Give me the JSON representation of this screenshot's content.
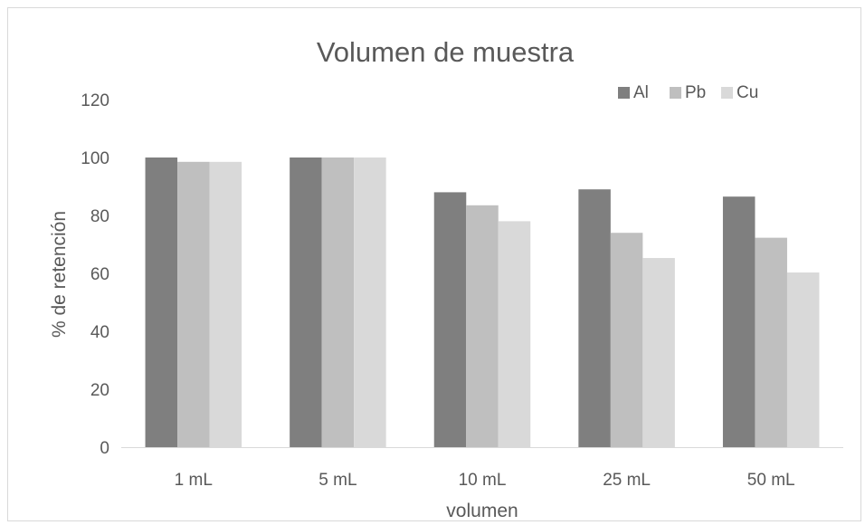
{
  "chart_data": {
    "type": "bar",
    "title": "Volumen de muestra",
    "xlabel": "volumen",
    "ylabel": "% de retención",
    "categories": [
      "1 mL",
      "5 mL",
      "10 mL",
      "25 mL",
      "50 mL"
    ],
    "ylim": [
      0,
      120
    ],
    "yticks": [
      "0",
      "20",
      "40",
      "60",
      "80",
      "100",
      "120"
    ],
    "grid": false,
    "legend_position": "top-right",
    "series": [
      {
        "name": "Al",
        "color": "#7f7f7f",
        "values": [
          100,
          100,
          88,
          89,
          86.5
        ]
      },
      {
        "name": "Pb",
        "color": "#bfbfbf",
        "values": [
          98.5,
          100,
          83.5,
          74,
          72.3
        ]
      },
      {
        "name": "Cu",
        "color": "#d9d9d9",
        "values": [
          98.5,
          100,
          78,
          65.3,
          60.3
        ]
      }
    ]
  }
}
